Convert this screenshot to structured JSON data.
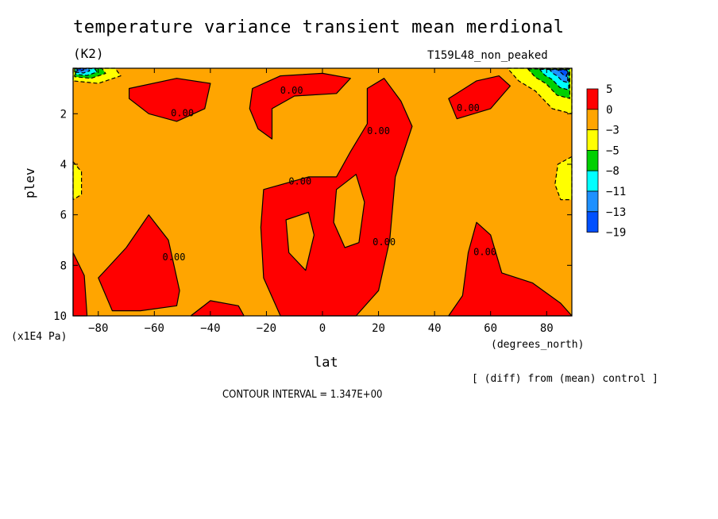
{
  "page": {
    "title": "temperature variance transient mean merdional",
    "units": "(K2)",
    "run_id": "T159L48_non_peaked",
    "diff_note": "[ (diff) from (mean) control ]",
    "contour_interval": "CONTOUR INTERVAL = 1.347E+00"
  },
  "chart_data": {
    "type": "heatmap",
    "title": "temperature variance transient mean merdional",
    "xlabel": "lat",
    "xunits": "(degrees_north)",
    "ylabel": "plev",
    "yunits": "(x1E4 Pa)",
    "xlim": [
      -89,
      89
    ],
    "ylim": [
      10,
      0.2
    ],
    "xticks": [
      -80,
      -60,
      -40,
      -20,
      0,
      20,
      40,
      60,
      80
    ],
    "yticks": [
      2,
      4,
      6,
      8,
      10
    ],
    "background_level": "0 to -3",
    "colorbar": {
      "levels": [
        "5",
        "0",
        "-3",
        "-5",
        "-8",
        "-11",
        "-13",
        "-19"
      ],
      "colors": [
        "#ff0000",
        "#ffa500",
        "#ffff00",
        "#00d000",
        "#00ffff",
        "#1e90ff",
        "#0050ff"
      ]
    },
    "contour_labels": [
      {
        "text": "0.00",
        "lat": -50,
        "plev": 2.1
      },
      {
        "text": "0.00",
        "lat": -11,
        "plev": 1.2
      },
      {
        "text": "0.00",
        "lat": 20,
        "plev": 2.8
      },
      {
        "text": "0.00",
        "lat": -8,
        "plev": 4.8
      },
      {
        "text": "0.00",
        "lat": 52,
        "plev": 1.9
      },
      {
        "text": "0.00",
        "lat": 22,
        "plev": 7.2
      },
      {
        "text": "0.00",
        "lat": -53,
        "plev": 7.8
      },
      {
        "text": "0.00",
        "lat": 58,
        "plev": 7.6
      }
    ],
    "positive_regions": [
      {
        "name": "upper-left-blob",
        "points": [
          [
            -69,
            1.0
          ],
          [
            -52,
            0.6
          ],
          [
            -40,
            0.8
          ],
          [
            -42,
            1.8
          ],
          [
            -52,
            2.3
          ],
          [
            -62,
            2.0
          ],
          [
            -69,
            1.4
          ]
        ]
      },
      {
        "name": "upper-center-blob",
        "points": [
          [
            -25,
            1.0
          ],
          [
            -15,
            0.5
          ],
          [
            0,
            0.4
          ],
          [
            10,
            0.6
          ],
          [
            5,
            1.2
          ],
          [
            -10,
            1.3
          ],
          [
            -18,
            1.8
          ],
          [
            -18,
            3.0
          ],
          [
            -23,
            2.6
          ],
          [
            -26,
            1.8
          ]
        ]
      },
      {
        "name": "upper-right-blob",
        "points": [
          [
            45,
            1.4
          ],
          [
            55,
            0.7
          ],
          [
            63,
            0.5
          ],
          [
            67,
            0.9
          ],
          [
            60,
            1.8
          ],
          [
            48,
            2.2
          ]
        ]
      },
      {
        "name": "center-column",
        "points": [
          [
            -21,
            5.0
          ],
          [
            -5,
            4.5
          ],
          [
            5,
            4.5
          ],
          [
            10,
            3.5
          ],
          [
            16,
            2.4
          ],
          [
            16,
            1.0
          ],
          [
            22,
            0.6
          ],
          [
            28,
            1.5
          ],
          [
            32,
            2.5
          ],
          [
            26,
            4.5
          ],
          [
            24,
            7.0
          ],
          [
            20,
            9.0
          ],
          [
            12,
            10.0
          ],
          [
            -15,
            10.0
          ],
          [
            -21,
            8.5
          ],
          [
            -22,
            6.5
          ]
        ]
      },
      {
        "name": "lower-left-blob",
        "points": [
          [
            -80,
            8.5
          ],
          [
            -70,
            7.3
          ],
          [
            -62,
            6.0
          ],
          [
            -55,
            7.0
          ],
          [
            -51,
            9.0
          ],
          [
            -52,
            9.6
          ],
          [
            -65,
            9.8
          ],
          [
            -75,
            9.8
          ]
        ]
      },
      {
        "name": "lower-right-blob",
        "points": [
          [
            45,
            10.0
          ],
          [
            50,
            9.2
          ],
          [
            52,
            7.5
          ],
          [
            55,
            6.3
          ],
          [
            60,
            6.8
          ],
          [
            64,
            8.3
          ],
          [
            75,
            8.7
          ],
          [
            85,
            9.5
          ],
          [
            89,
            10.0
          ]
        ]
      },
      {
        "name": "lower-left-edge",
        "points": [
          [
            -89,
            7.5
          ],
          [
            -85,
            8.4
          ],
          [
            -84,
            10.0
          ],
          [
            -89,
            10.0
          ]
        ]
      },
      {
        "name": "lower-middle-patch",
        "points": [
          [
            -47,
            10.0
          ],
          [
            -40,
            9.4
          ],
          [
            -30,
            9.6
          ],
          [
            -28,
            10.0
          ]
        ]
      }
    ],
    "negative_regions": [
      {
        "name": "top-left-corner",
        "level": "-19 to -3",
        "points": [
          [
            -89,
            0.2
          ],
          [
            -74,
            0.2
          ],
          [
            -72,
            0.5
          ],
          [
            -80,
            0.8
          ],
          [
            -89,
            0.7
          ]
        ]
      },
      {
        "name": "top-right-corner",
        "level": "-19 to -3",
        "points": [
          [
            66,
            0.2
          ],
          [
            89,
            0.2
          ],
          [
            89,
            2.0
          ],
          [
            82,
            1.8
          ],
          [
            76,
            1.1
          ],
          [
            70,
            0.7
          ]
        ]
      },
      {
        "name": "left-edge",
        "level": "-3 to -5",
        "points": [
          [
            -89,
            3.9
          ],
          [
            -86,
            4.3
          ],
          [
            -86,
            5.2
          ],
          [
            -89,
            5.4
          ]
        ]
      },
      {
        "name": "right-edge",
        "level": "-3 to -5",
        "points": [
          [
            89,
            3.7
          ],
          [
            84,
            4.0
          ],
          [
            83,
            4.8
          ],
          [
            85,
            5.4
          ],
          [
            89,
            5.4
          ]
        ]
      }
    ]
  }
}
